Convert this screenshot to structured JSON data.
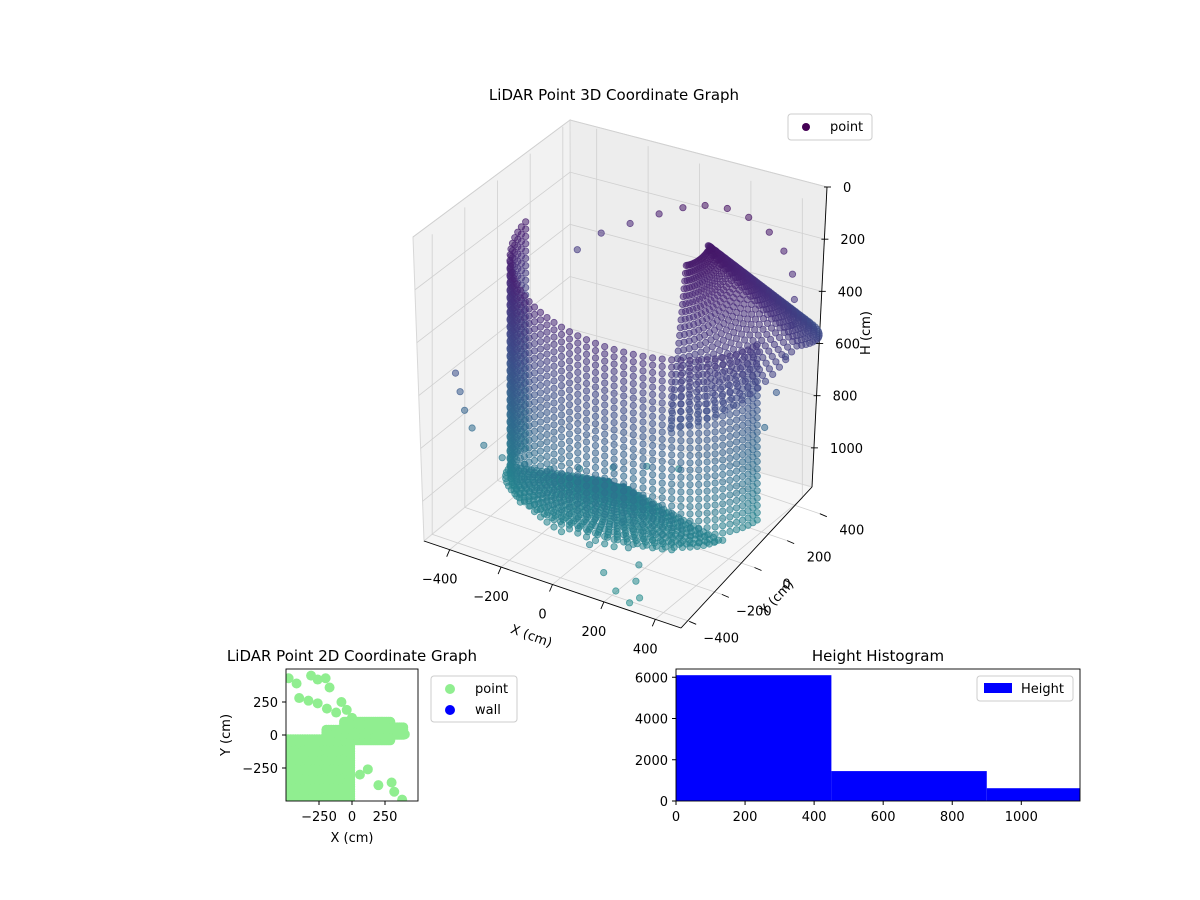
{
  "chart_data": [
    {
      "type": "scatter3d",
      "title": "LiDAR Point 3D Coordinate Graph",
      "xlabel": "X (cm)",
      "ylabel": "Y (cm)",
      "zlabel": "H (cm)",
      "xlim": [
        -500,
        500
      ],
      "ylim": [
        -450,
        450
      ],
      "zlim": [
        0,
        1150
      ],
      "z_axis_inverted": true,
      "x_ticks": [
        -400,
        -200,
        0,
        200,
        400
      ],
      "y_ticks": [
        -400,
        -200,
        0,
        200,
        400
      ],
      "z_ticks": [
        0,
        200,
        400,
        600,
        800,
        1000
      ],
      "x_tick_labels": [
        "−400",
        "−200",
        "0",
        "200",
        "400"
      ],
      "y_tick_labels": [
        "−400",
        "−200",
        "0",
        "200",
        "400"
      ],
      "z_tick_labels": [
        "0",
        "200",
        "400",
        "600",
        "800",
        "1000"
      ],
      "colormap": "viridis",
      "legend": {
        "entries": [
          "point"
        ],
        "placement": "top-right"
      },
      "series": [
        {
          "name": "point",
          "description_of_shape": [],
          "points_sample": [
            [
              -460,
              -320,
              560
            ],
            [
              -455,
              -300,
              640
            ],
            [
              -450,
              -280,
              720
            ],
            [
              -440,
              -250,
              800
            ],
            [
              -420,
              -210,
              880
            ],
            [
              -380,
              -160,
              940
            ],
            [
              -330,
              -100,
              980
            ],
            [
              -270,
              -40,
              1010
            ],
            [
              -200,
              30,
              1020
            ],
            [
              -120,
              110,
              1030
            ],
            [
              -40,
              190,
              1040
            ],
            [
              40,
              260,
              1060
            ],
            [
              -380,
              300,
              380
            ],
            [
              -300,
              320,
              300
            ],
            [
              -200,
              340,
              240
            ],
            [
              -100,
              360,
              180
            ],
            [
              -20,
              380,
              140
            ],
            [
              60,
              390,
              110
            ],
            [
              140,
              400,
              100
            ],
            [
              220,
              405,
              110
            ],
            [
              300,
              405,
              140
            ],
            [
              360,
              400,
              190
            ],
            [
              400,
              390,
              260
            ],
            [
              420,
              370,
              340
            ],
            [
              430,
              340,
              420
            ],
            [
              430,
              300,
              520
            ],
            [
              420,
              260,
              640
            ],
            [
              400,
              220,
              760
            ],
            [
              100,
              -380,
              1000
            ],
            [
              180,
              -420,
              1060
            ],
            [
              240,
              -440,
              1100
            ],
            [
              300,
              -450,
              1120
            ]
          ]
        }
      ]
    },
    {
      "type": "scatter",
      "title": "LiDAR Point 2D Coordinate Graph",
      "xlabel": "X (cm)",
      "ylabel": "Y (cm)",
      "xlim": [
        -500,
        500
      ],
      "ylim": [
        -500,
        500
      ],
      "x_ticks": [
        -250,
        0,
        250
      ],
      "y_ticks": [
        -250,
        0,
        250
      ],
      "x_tick_labels": [
        "−250",
        "0",
        "250"
      ],
      "y_tick_labels": [
        "−250",
        "0",
        "250"
      ],
      "legend": {
        "entries": [
          "point",
          "wall"
        ],
        "placement": "outside-right"
      },
      "colors": {
        "point": "#90ee90",
        "wall": "#0000ff"
      },
      "series": [
        {
          "name": "point",
          "points_sample": [
            [
              -480,
              430
            ],
            [
              -420,
              390
            ],
            [
              -310,
              450
            ],
            [
              -260,
              420
            ],
            [
              -200,
              430
            ],
            [
              -170,
              360
            ],
            [
              -400,
              280
            ],
            [
              -330,
              260
            ],
            [
              -260,
              240
            ],
            [
              -190,
              200
            ],
            [
              -120,
              170
            ],
            [
              -80,
              250
            ],
            [
              -40,
              190
            ],
            [
              0,
              130
            ],
            [
              -10,
              80
            ],
            [
              60,
              90
            ],
            [
              120,
              80
            ],
            [
              190,
              70
            ],
            [
              260,
              60
            ],
            [
              330,
              40
            ],
            [
              380,
              20
            ],
            [
              400,
              5
            ],
            [
              -60,
              60
            ],
            [
              -120,
              20
            ],
            [
              -200,
              -40
            ],
            [
              -300,
              -90
            ],
            [
              -400,
              -140
            ],
            [
              -460,
              -200
            ],
            [
              -480,
              -300
            ],
            [
              -480,
              -420
            ],
            [
              -380,
              -470
            ],
            [
              -260,
              -480
            ],
            [
              -140,
              -470
            ],
            [
              -60,
              -430
            ],
            [
              -20,
              -350
            ],
            [
              60,
              -300
            ],
            [
              120,
              -260
            ],
            [
              200,
              -380
            ],
            [
              300,
              -360
            ],
            [
              320,
              -430
            ],
            [
              380,
              -490
            ]
          ]
        },
        {
          "name": "wall",
          "points_sample": []
        }
      ]
    },
    {
      "type": "bar",
      "title": "Height Histogram",
      "xlim": [
        0,
        1170
      ],
      "ylim": [
        0,
        6400
      ],
      "x_ticks": [
        0,
        200,
        400,
        600,
        800,
        1000
      ],
      "y_ticks": [
        0,
        2000,
        4000,
        6000
      ],
      "x_tick_labels": [
        "0",
        "200",
        "400",
        "600",
        "800",
        "1000"
      ],
      "y_tick_labels": [
        "0",
        "2000",
        "4000",
        "6000"
      ],
      "legend": {
        "entries": [
          "Height"
        ],
        "placement": "top-right"
      },
      "colors": {
        "Height": "#0000ff"
      },
      "bins": [
        {
          "start": 0,
          "end": 450,
          "count": 6100
        },
        {
          "start": 450,
          "end": 900,
          "count": 1450
        },
        {
          "start": 900,
          "end": 1170,
          "count": 620
        }
      ],
      "series": [
        {
          "name": "Height",
          "values": [
            6100,
            1450,
            620
          ]
        }
      ]
    }
  ]
}
